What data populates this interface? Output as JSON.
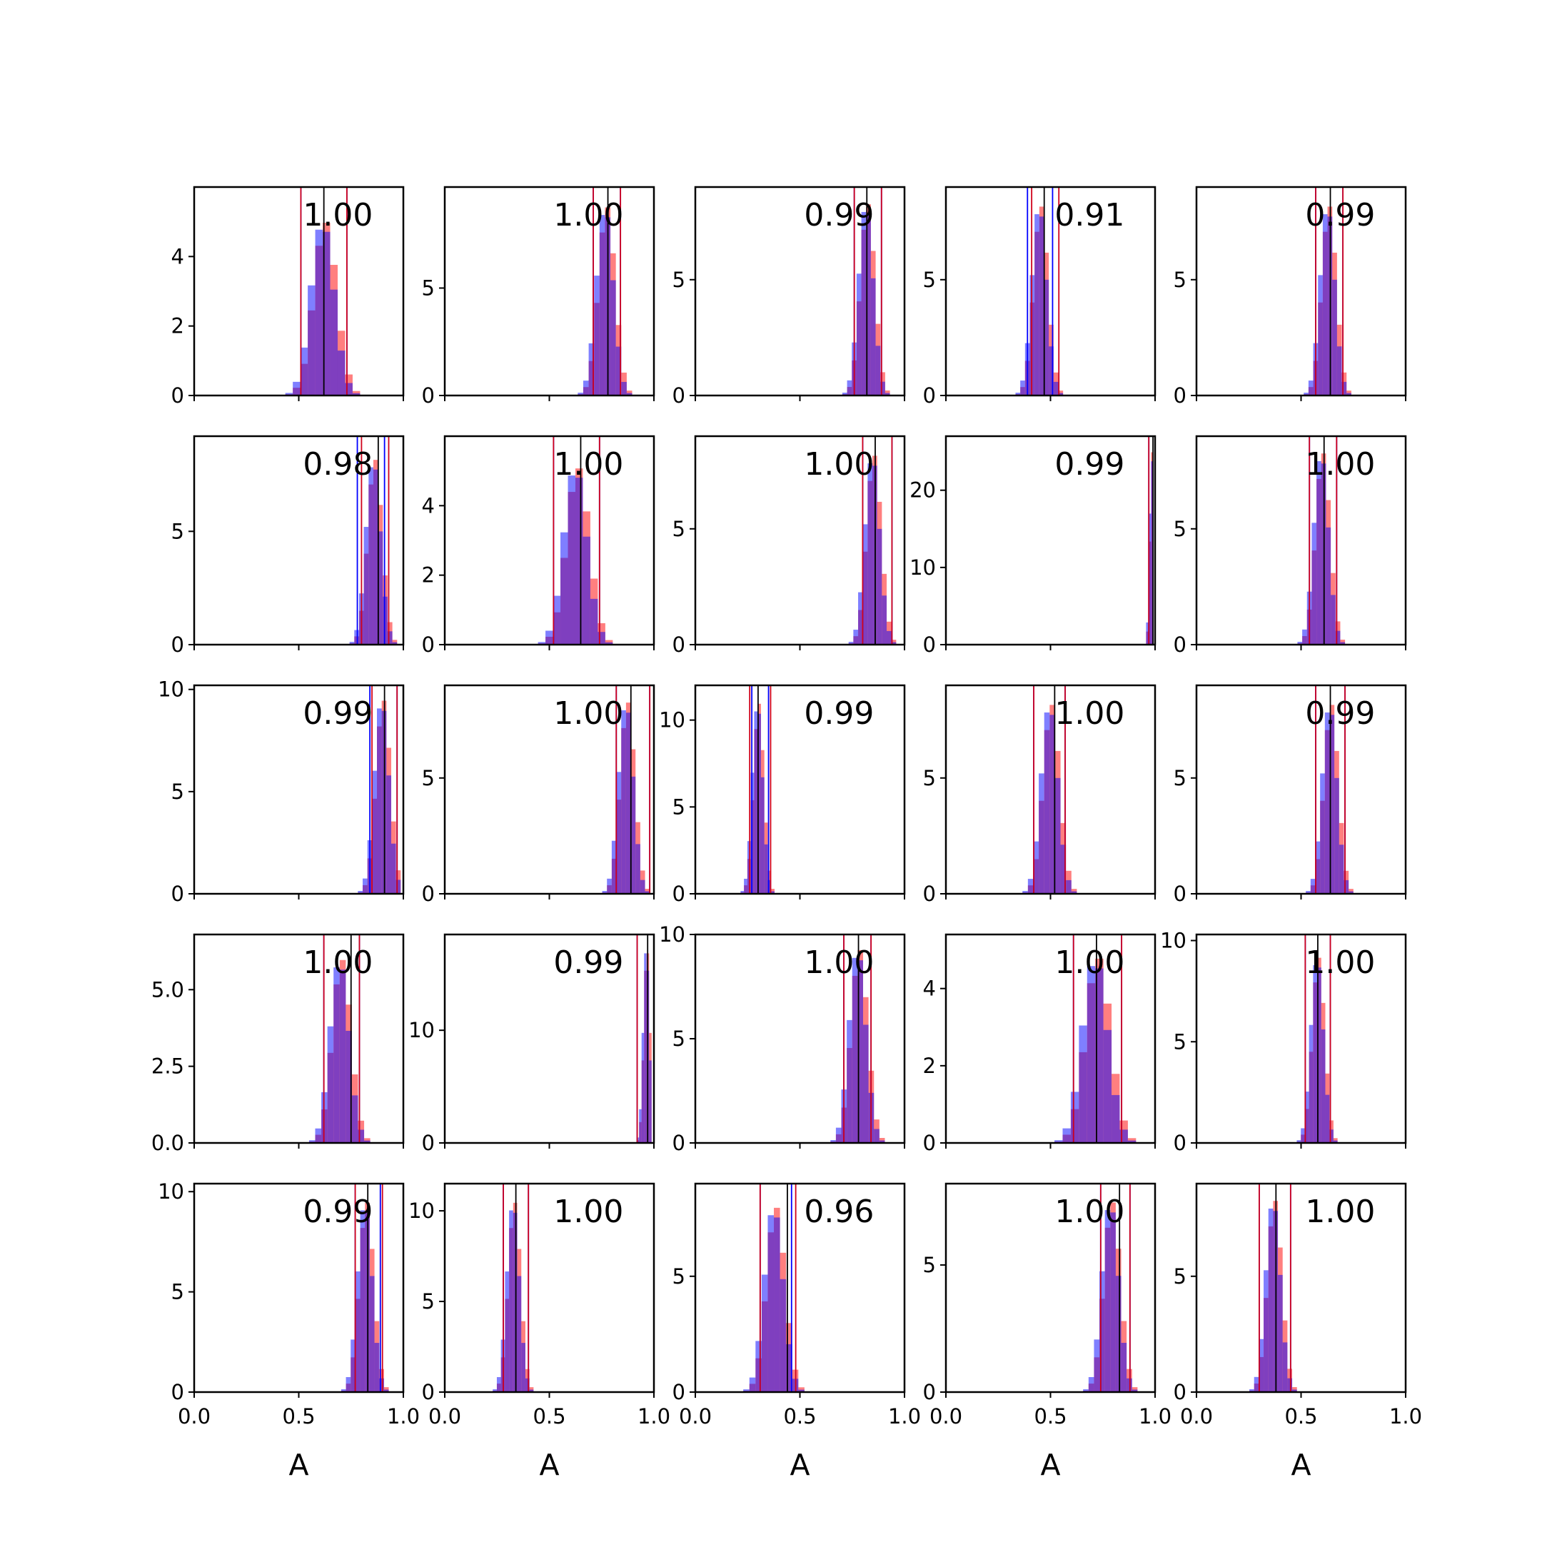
{
  "chart_data": {
    "type": "histogram-grid",
    "rows": 5,
    "cols": 5,
    "xlabel": "A",
    "xlim": [
      0.0,
      1.0
    ],
    "xticks": [
      0.0,
      0.5,
      1.0
    ],
    "xtick_labels": [
      "0.0",
      "0.5",
      "1.0"
    ],
    "series_colors": {
      "blue": "#0000ff",
      "red": "#ff0000",
      "overlap": "#7f3fbf",
      "truth_line": "#000000",
      "interval_line": "#d0021b"
    },
    "panels": [
      {
        "label": "1.00",
        "center": 0.62,
        "spread": 0.055,
        "peak": 5.0,
        "ymax": 6.0,
        "yticks": [
          0,
          2,
          4
        ],
        "ytick_labels": [
          "0",
          "2",
          "4"
        ],
        "truth": 0.62,
        "interval": [
          0.51,
          0.73
        ],
        "blue_interval": [
          0.51,
          0.73
        ]
      },
      {
        "label": "1.00",
        "center": 0.77,
        "spread": 0.04,
        "peak": 8.8,
        "ymax": 9.7,
        "yticks": [
          0,
          5
        ],
        "ytick_labels": [
          "0",
          "5"
        ],
        "truth": 0.78,
        "interval": [
          0.71,
          0.84
        ],
        "blue_interval": [
          0.71,
          0.84
        ]
      },
      {
        "label": "0.99",
        "center": 0.82,
        "spread": 0.035,
        "peak": 8.3,
        "ymax": 9.0,
        "yticks": [
          0,
          5
        ],
        "ytick_labels": [
          "0",
          "5"
        ],
        "truth": 0.82,
        "interval": [
          0.76,
          0.89
        ],
        "blue_interval": [
          0.76,
          0.89
        ]
      },
      {
        "label": "0.91",
        "center": 0.45,
        "spread": 0.035,
        "peak": 8.2,
        "ymax": 9.0,
        "yticks": [
          0,
          5
        ],
        "ytick_labels": [
          "0",
          "5"
        ],
        "truth": 0.47,
        "interval": [
          0.41,
          0.54
        ],
        "blue_interval": [
          0.39,
          0.51
        ]
      },
      {
        "label": "0.99",
        "center": 0.63,
        "spread": 0.035,
        "peak": 8.2,
        "ymax": 9.0,
        "yticks": [
          0,
          5
        ],
        "ytick_labels": [
          "0",
          "5"
        ],
        "truth": 0.64,
        "interval": [
          0.57,
          0.7
        ],
        "blue_interval": [
          0.57,
          0.7
        ]
      },
      {
        "label": "0.98",
        "center": 0.86,
        "spread": 0.035,
        "peak": 8.2,
        "ymax": 9.2,
        "yticks": [
          0,
          5
        ],
        "ytick_labels": [
          "0",
          "5"
        ],
        "truth": 0.88,
        "interval": [
          0.8,
          0.93
        ],
        "blue_interval": [
          0.78,
          0.91
        ]
      },
      {
        "label": "1.00",
        "center": 0.63,
        "spread": 0.055,
        "peak": 5.1,
        "ymax": 6.0,
        "yticks": [
          0,
          2,
          4
        ],
        "ytick_labels": [
          "0",
          "2",
          "4"
        ],
        "truth": 0.65,
        "interval": [
          0.52,
          0.74
        ],
        "blue_interval": [
          0.52,
          0.74
        ]
      },
      {
        "label": "1.00",
        "center": 0.85,
        "spread": 0.035,
        "peak": 8.2,
        "ymax": 9.0,
        "yticks": [
          0,
          5
        ],
        "ytick_labels": [
          "0",
          "5"
        ],
        "truth": 0.86,
        "interval": [
          0.8,
          0.94
        ],
        "blue_interval": [
          0.8,
          0.94
        ]
      },
      {
        "label": "0.99",
        "center": 0.985,
        "spread": 0.01,
        "peak": 25.0,
        "ymax": 27.0,
        "yticks": [
          0,
          10,
          20
        ],
        "ytick_labels": [
          "0",
          "10",
          "20"
        ],
        "truth": 0.99,
        "interval": [
          0.97,
          1.0
        ],
        "blue_interval": [
          0.97,
          1.0
        ]
      },
      {
        "label": "1.00",
        "center": 0.6,
        "spread": 0.035,
        "peak": 8.3,
        "ymax": 9.0,
        "yticks": [
          0,
          5
        ],
        "ytick_labels": [
          "0",
          "5"
        ],
        "truth": 0.61,
        "interval": [
          0.54,
          0.67
        ],
        "blue_interval": [
          0.54,
          0.67
        ]
      },
      {
        "label": "0.99",
        "center": 0.9,
        "spread": 0.035,
        "peak": 9.5,
        "ymax": 10.2,
        "yticks": [
          0,
          5,
          10
        ],
        "ytick_labels": [
          "0",
          "5",
          "10"
        ],
        "truth": 0.91,
        "interval": [
          0.85,
          0.97
        ],
        "blue_interval": [
          0.84,
          0.97
        ]
      },
      {
        "label": "1.00",
        "center": 0.87,
        "spread": 0.035,
        "peak": 8.3,
        "ymax": 9.0,
        "yticks": [
          0,
          5
        ],
        "ytick_labels": [
          "0",
          "5"
        ],
        "truth": 0.89,
        "interval": [
          0.82,
          0.98
        ],
        "blue_interval": [
          0.82,
          0.98
        ]
      },
      {
        "label": "0.99",
        "center": 0.3,
        "spread": 0.025,
        "peak": 11.0,
        "ymax": 12.0,
        "yticks": [
          0,
          5,
          10
        ],
        "ytick_labels": [
          "0",
          "5",
          "10"
        ],
        "truth": 0.3,
        "interval": [
          0.26,
          0.36
        ],
        "blue_interval": [
          0.27,
          0.35
        ]
      },
      {
        "label": "1.00",
        "center": 0.5,
        "spread": 0.04,
        "peak": 8.2,
        "ymax": 9.0,
        "yticks": [
          0,
          5
        ],
        "ytick_labels": [
          "0",
          "5"
        ],
        "truth": 0.52,
        "interval": [
          0.42,
          0.57
        ],
        "blue_interval": [
          0.42,
          0.57
        ]
      },
      {
        "label": "0.99",
        "center": 0.64,
        "spread": 0.035,
        "peak": 8.2,
        "ymax": 9.0,
        "yticks": [
          0,
          5
        ],
        "ytick_labels": [
          "0",
          "5"
        ],
        "truth": 0.64,
        "interval": [
          0.57,
          0.71
        ],
        "blue_interval": [
          0.57,
          0.71
        ]
      },
      {
        "label": "1.00",
        "center": 0.7,
        "spread": 0.045,
        "peak": 6.0,
        "ymax": 6.8,
        "yticks": [
          0,
          2.5,
          5
        ],
        "ytick_labels": [
          "0.0",
          "2.5",
          "5.0"
        ],
        "truth": 0.75,
        "interval": [
          0.62,
          0.79
        ],
        "blue_interval": [
          0.62,
          0.79
        ]
      },
      {
        "label": "0.99",
        "center": 0.965,
        "spread": 0.015,
        "peak": 17.5,
        "ymax": 18.5,
        "yticks": [
          0,
          10
        ],
        "ytick_labels": [
          "0",
          "10"
        ],
        "truth": 0.97,
        "interval": [
          0.92,
          1.0
        ],
        "blue_interval": [
          0.92,
          1.0
        ]
      },
      {
        "label": "1.00",
        "center": 0.78,
        "spread": 0.04,
        "peak": 9.3,
        "ymax": 10.0,
        "yticks": [
          0,
          5,
          10
        ],
        "ytick_labels": [
          "0",
          "5",
          "10"
        ],
        "truth": 0.78,
        "interval": [
          0.71,
          0.84
        ],
        "blue_interval": [
          0.71,
          0.84
        ]
      },
      {
        "label": "1.00",
        "center": 0.72,
        "spread": 0.06,
        "peak": 4.8,
        "ymax": 5.4,
        "yticks": [
          0,
          2,
          4
        ],
        "ytick_labels": [
          "0",
          "2",
          "4"
        ],
        "truth": 0.72,
        "interval": [
          0.61,
          0.84
        ],
        "blue_interval": [
          0.61,
          0.84
        ]
      },
      {
        "label": "1.00",
        "center": 0.58,
        "spread": 0.03,
        "peak": 9.2,
        "ymax": 10.3,
        "yticks": [
          0,
          5,
          10
        ],
        "ytick_labels": [
          "0",
          "5",
          "10"
        ],
        "truth": 0.58,
        "interval": [
          0.52,
          0.64
        ],
        "blue_interval": [
          0.52,
          0.64
        ]
      },
      {
        "label": "0.99",
        "center": 0.82,
        "spread": 0.035,
        "peak": 9.5,
        "ymax": 10.4,
        "yticks": [
          0,
          5,
          10
        ],
        "ytick_labels": [
          "0",
          "5",
          "10"
        ],
        "truth": 0.83,
        "interval": [
          0.77,
          0.9
        ],
        "blue_interval": [
          0.77,
          0.89
        ]
      },
      {
        "label": "1.00",
        "center": 0.33,
        "spread": 0.03,
        "peak": 10.5,
        "ymax": 11.5,
        "yticks": [
          0,
          5,
          10
        ],
        "ytick_labels": [
          "0",
          "5",
          "10"
        ],
        "truth": 0.34,
        "interval": [
          0.28,
          0.4
        ],
        "blue_interval": [
          0.28,
          0.4
        ]
      },
      {
        "label": "0.96",
        "center": 0.38,
        "spread": 0.045,
        "peak": 8.0,
        "ymax": 9.0,
        "yticks": [
          0,
          5
        ],
        "ytick_labels": [
          "0",
          "5"
        ],
        "truth": 0.44,
        "interval": [
          0.31,
          0.48
        ],
        "blue_interval": [
          0.31,
          0.46
        ]
      },
      {
        "label": "1.00",
        "center": 0.79,
        "spread": 0.04,
        "peak": 7.5,
        "ymax": 8.2,
        "yticks": [
          0,
          5
        ],
        "ytick_labels": [
          "0",
          "5"
        ],
        "truth": 0.83,
        "interval": [
          0.74,
          0.88
        ],
        "blue_interval": [
          0.74,
          0.88
        ]
      },
      {
        "label": "1.00",
        "center": 0.37,
        "spread": 0.035,
        "peak": 8.3,
        "ymax": 9.0,
        "yticks": [
          0,
          5
        ],
        "ytick_labels": [
          "0",
          "5"
        ],
        "truth": 0.38,
        "interval": [
          0.3,
          0.45
        ],
        "blue_interval": [
          0.3,
          0.45
        ]
      }
    ]
  }
}
